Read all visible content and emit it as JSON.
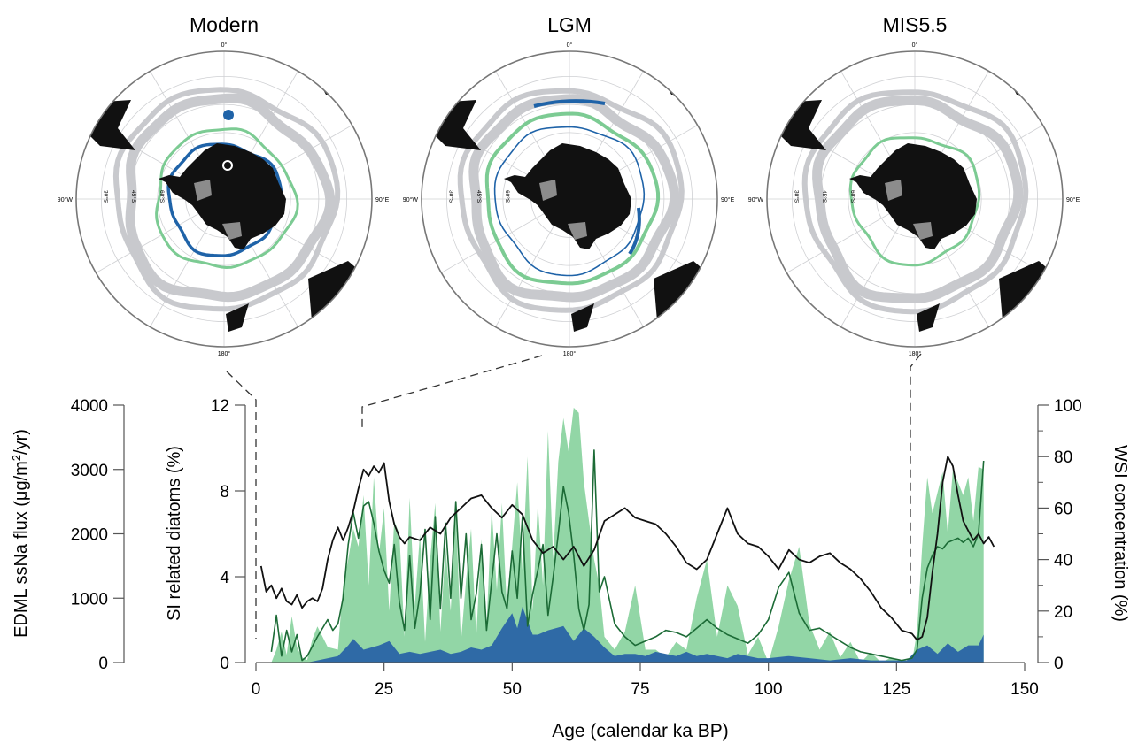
{
  "maps": [
    {
      "title": "Modern",
      "label_top": "0°",
      "label_bottom": "180°",
      "label_left": "90°W",
      "label_right": "90°E",
      "lat_labels": [
        "30°S",
        "45°S",
        "60°S"
      ]
    },
    {
      "title": "LGM",
      "label_top": "0°",
      "label_bottom": "180°",
      "label_left": "90°W",
      "label_right": "90°E",
      "lat_labels": [
        "30°S",
        "45°S",
        "60°S"
      ]
    },
    {
      "title": "MIS5.5",
      "label_top": "0°",
      "label_bottom": "180°",
      "label_left": "90°W",
      "label_right": "90°E",
      "lat_labels": [
        "30°S",
        "45°S",
        "60°S"
      ]
    }
  ],
  "colors": {
    "land": "#111111",
    "ice_shelf": "#8c8c8c",
    "front_band": "#c8c9cd",
    "winter_sea_ice": "#7ccb93",
    "summer_sea_ice": "#1f63a8",
    "wsi_fill": "#92d6a6",
    "diatom_fill": "#2f6aa6",
    "si_line": "#1c6b36",
    "ssna_line": "#111111"
  },
  "chart_data": {
    "type": "area",
    "xlabel": "Age (calendar ka BP)",
    "xlim": [
      0,
      150
    ],
    "xticks": [
      0,
      25,
      50,
      75,
      100,
      125,
      150
    ],
    "axes": [
      {
        "label": "EDML ssNa flux (μg/m²/yr)",
        "label_main": "EDML ssNa flux (μg/m",
        "label_sup": "2",
        "label_end": "/yr)",
        "ylim": [
          0,
          4000
        ],
        "ticks": [
          0,
          1000,
          2000,
          3000,
          4000
        ]
      },
      {
        "label": "SI related diatoms (%)",
        "ylim": [
          0,
          12
        ],
        "ticks": [
          0,
          4,
          8,
          12
        ]
      },
      {
        "label": "WSI concentration (%)",
        "ylim": [
          0,
          100
        ],
        "ticks": [
          0,
          20,
          40,
          60,
          80,
          100
        ]
      }
    ],
    "series": [
      {
        "kind": "area",
        "axis": "WSI concentration (%)",
        "x": [
          3,
          4,
          5,
          6,
          7,
          8,
          9,
          10,
          11,
          12,
          14,
          16,
          17,
          18,
          19,
          20,
          21,
          22,
          23,
          24,
          25,
          26,
          27,
          28,
          29,
          30,
          31,
          32,
          33,
          34,
          35,
          36,
          37,
          38,
          39,
          40,
          41,
          42,
          43,
          44,
          45,
          46,
          47,
          48,
          49,
          50,
          51,
          52,
          53,
          54,
          55,
          56,
          57,
          58,
          59,
          60,
          61,
          62,
          63,
          64,
          65,
          66,
          67,
          68,
          70,
          72,
          74,
          76,
          78,
          80,
          82,
          84,
          86,
          88,
          90,
          92,
          94,
          96,
          98,
          100,
          102,
          104,
          106,
          108,
          110,
          112,
          114,
          116,
          118,
          120,
          122,
          124,
          126,
          128,
          129,
          130,
          131,
          132,
          133,
          134,
          135,
          136,
          137,
          138,
          139,
          140,
          141,
          142
        ],
        "y": [
          0,
          5,
          12,
          3,
          18,
          6,
          2,
          1,
          9,
          14,
          6,
          5,
          30,
          40,
          52,
          45,
          65,
          30,
          72,
          42,
          60,
          20,
          55,
          50,
          10,
          64,
          22,
          50,
          8,
          40,
          62,
          12,
          45,
          20,
          58,
          8,
          32,
          52,
          10,
          48,
          14,
          60,
          28,
          62,
          20,
          45,
          70,
          36,
          80,
          20,
          62,
          30,
          90,
          40,
          78,
          95,
          82,
          99,
          97,
          70,
          55,
          40,
          30,
          10,
          5,
          12,
          30,
          5,
          5,
          2,
          8,
          5,
          25,
          40,
          10,
          30,
          22,
          3,
          10,
          0,
          14,
          32,
          45,
          15,
          5,
          12,
          2,
          8,
          0,
          4,
          0,
          2,
          0,
          0,
          12,
          45,
          72,
          58,
          66,
          74,
          50,
          75,
          70,
          65,
          72,
          55,
          76,
          75
        ]
      },
      {
        "kind": "area",
        "axis": "SI related diatoms (%)",
        "x": [
          3,
          10,
          12,
          16,
          18,
          19,
          21,
          24,
          26,
          28,
          30,
          32,
          36,
          38,
          40,
          42,
          44,
          46,
          48,
          50,
          51,
          52,
          54,
          55,
          57,
          60,
          62,
          64,
          66,
          68,
          70,
          72,
          74,
          76,
          78,
          80,
          82,
          84,
          86,
          88,
          90,
          92,
          94,
          96,
          98,
          100,
          104,
          108,
          112,
          116,
          120,
          124,
          127,
          129,
          131,
          133,
          135,
          137,
          139,
          141,
          142
        ],
        "y": [
          0,
          0,
          0.1,
          0.3,
          0.8,
          1.1,
          0.6,
          0.8,
          1.0,
          0.4,
          0.5,
          0.4,
          0.6,
          0.4,
          0.5,
          0.7,
          0.6,
          0.8,
          1.6,
          2.3,
          1.6,
          2.6,
          1.3,
          1.3,
          1.5,
          1.7,
          1.0,
          1.6,
          1.2,
          0.7,
          0.3,
          0.4,
          0.4,
          0.3,
          0.5,
          0.4,
          0.3,
          0.5,
          0.3,
          0.4,
          0.3,
          0.2,
          0.4,
          0.3,
          0.2,
          0.2,
          0.3,
          0.2,
          0.1,
          0.2,
          0.1,
          0.1,
          0.1,
          0.6,
          0.8,
          0.4,
          0.9,
          0.5,
          0.8,
          0.8,
          1.3
        ]
      },
      {
        "kind": "line",
        "axis": "SI related diatoms (%)",
        "x": [
          3,
          4,
          5,
          6,
          7,
          8,
          9,
          10,
          12,
          14,
          15,
          16,
          17,
          18,
          19,
          20,
          21,
          22,
          23,
          24,
          25,
          26,
          27,
          28,
          29,
          30,
          31,
          32,
          33,
          34,
          35,
          36,
          37,
          38,
          39,
          40,
          41,
          42,
          43,
          44,
          45,
          46,
          47,
          48,
          49,
          50,
          51,
          52,
          53,
          54,
          55,
          56,
          57,
          58,
          59,
          60,
          61,
          62,
          63,
          64,
          65,
          66,
          67,
          68,
          70,
          72,
          74,
          76,
          78,
          80,
          82,
          84,
          86,
          88,
          90,
          92,
          94,
          96,
          98,
          100,
          102,
          104,
          106,
          108,
          110,
          112,
          114,
          116,
          118,
          120,
          122,
          124,
          126,
          128,
          129,
          130,
          131,
          132,
          133,
          134,
          135,
          136,
          137,
          138,
          139,
          140,
          141,
          142
        ],
        "y": [
          0.5,
          2.2,
          0.3,
          1.5,
          0.5,
          1.3,
          0.1,
          0.3,
          1.2,
          2.0,
          1.5,
          1.8,
          3.0,
          5.5,
          7.0,
          5.8,
          7.3,
          7.5,
          6.5,
          5.2,
          4.3,
          3.7,
          5.5,
          2.8,
          1.5,
          5.0,
          1.6,
          3.2,
          6.2,
          2.0,
          6.8,
          2.5,
          6.5,
          3.0,
          7.5,
          3.0,
          6.0,
          2.0,
          3.2,
          5.5,
          1.5,
          3.8,
          6.0,
          3.3,
          2.5,
          5.2,
          3.0,
          6.8,
          1.7,
          3.2,
          4.3,
          5.5,
          2.2,
          4.0,
          6.0,
          8.2,
          7.0,
          5.0,
          2.5,
          1.5,
          2.7,
          9.9,
          3.3,
          4.0,
          1.8,
          1.2,
          0.8,
          1.0,
          1.2,
          1.5,
          1.4,
          1.2,
          1.6,
          2.0,
          1.6,
          1.3,
          1.1,
          0.9,
          1.3,
          2.0,
          3.5,
          4.2,
          2.3,
          1.5,
          1.6,
          1.3,
          1.0,
          0.7,
          0.5,
          0.4,
          0.3,
          0.2,
          0.1,
          0.2,
          0.6,
          3.0,
          4.4,
          5.0,
          5.4,
          5.3,
          5.6,
          5.7,
          5.8,
          5.6,
          5.8,
          5.4,
          6.0,
          9.4
        ]
      },
      {
        "kind": "line",
        "axis": "EDML ssNa flux (μg/m²/yr)",
        "x": [
          1,
          2,
          3,
          4,
          5,
          6,
          7,
          8,
          9,
          10,
          11,
          12,
          13,
          14,
          15,
          16,
          17,
          18,
          19,
          20,
          21,
          22,
          23,
          24,
          25,
          26,
          27,
          28,
          29,
          30,
          32,
          34,
          36,
          38,
          40,
          42,
          44,
          46,
          48,
          50,
          52,
          54,
          56,
          58,
          60,
          62,
          64,
          66,
          68,
          70,
          72,
          74,
          76,
          78,
          80,
          82,
          84,
          86,
          88,
          90,
          92,
          94,
          96,
          98,
          100,
          102,
          104,
          106,
          108,
          110,
          112,
          114,
          116,
          118,
          120,
          122,
          124,
          126,
          128,
          129,
          130,
          131,
          132,
          133,
          134,
          135,
          136,
          137,
          138,
          139,
          140,
          141,
          142,
          143,
          144
        ],
        "y": [
          1500,
          1100,
          1200,
          1000,
          1150,
          950,
          900,
          1050,
          850,
          950,
          1000,
          950,
          1150,
          1600,
          1900,
          2100,
          1900,
          2100,
          2350,
          2700,
          3000,
          2900,
          3050,
          2950,
          3100,
          2500,
          2150,
          1950,
          1850,
          1950,
          1900,
          2100,
          2000,
          2250,
          2400,
          2550,
          2600,
          2400,
          2250,
          2450,
          2300,
          1900,
          1700,
          1800,
          1600,
          1800,
          1500,
          1750,
          2200,
          2300,
          2400,
          2250,
          2200,
          2150,
          2000,
          1800,
          1550,
          1450,
          1600,
          2000,
          2400,
          2000,
          1850,
          1800,
          1650,
          1450,
          1750,
          1600,
          1550,
          1650,
          1700,
          1550,
          1450,
          1300,
          1100,
          850,
          700,
          500,
          450,
          350,
          400,
          700,
          1400,
          2000,
          2800,
          3200,
          3050,
          2600,
          2200,
          2050,
          1900,
          2000,
          1850,
          1950,
          1800
        ]
      }
    ]
  }
}
